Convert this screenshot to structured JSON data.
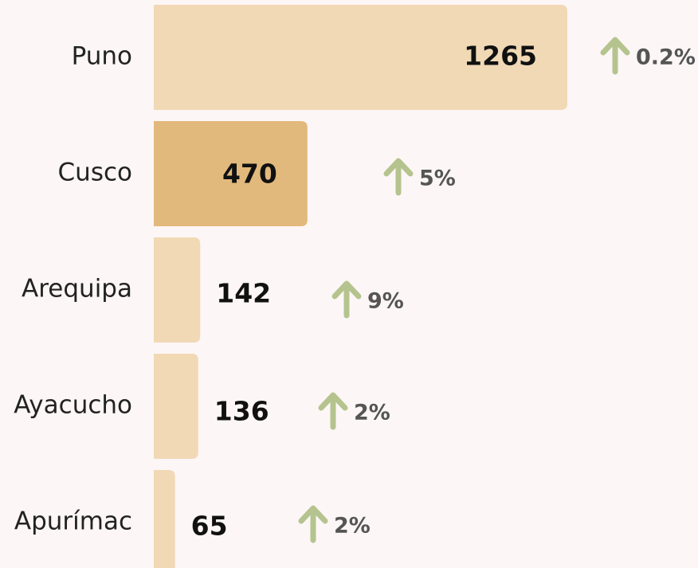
{
  "chart_data": {
    "type": "bar",
    "categories": [
      "Puno",
      "Cusco",
      "Arequipa",
      "Ayacucho",
      "Apurímac"
    ],
    "values": [
      1265,
      470,
      142,
      136,
      65
    ],
    "colors": [
      "#f1d9b6",
      "#e2b97c",
      "#f1d9b6",
      "#f1d9b6",
      "#f1d9b6"
    ],
    "change_labels": [
      "0.2%",
      "5%",
      "9%",
      "2%",
      "2%"
    ],
    "change_color": "#b5c48f"
  }
}
